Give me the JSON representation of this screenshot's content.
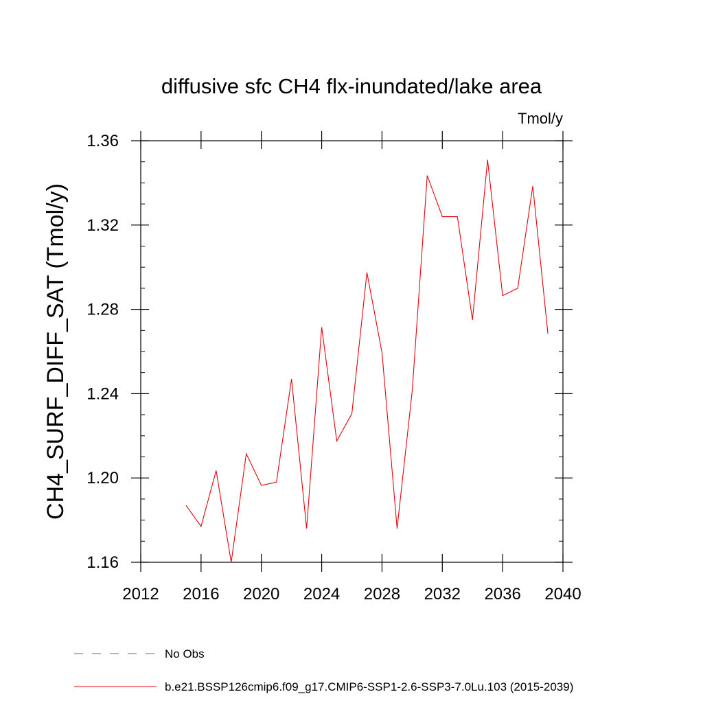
{
  "chart_data": {
    "type": "line",
    "title": "diffusive sfc CH4 flx-inundated/lake area",
    "units": "Tmol/y",
    "ylabel": "CH4_SURF_DIFF_SAT  (Tmol/y)",
    "xlabel": "",
    "xlim": [
      2012,
      2040
    ],
    "ylim": [
      1.16,
      1.36
    ],
    "x_ticks": [
      2012,
      2016,
      2020,
      2024,
      2028,
      2032,
      2036,
      2040
    ],
    "x_tick_labels": [
      "2012",
      "2016",
      "2020",
      "2024",
      "2028",
      "2032",
      "2036",
      "2040"
    ],
    "y_ticks": [
      1.16,
      1.2,
      1.24,
      1.28,
      1.32,
      1.36
    ],
    "y_tick_labels": [
      "1.16",
      "1.20",
      "1.24",
      "1.28",
      "1.32",
      "1.36"
    ],
    "grid": false,
    "legend_position": "bottom-left",
    "series": [
      {
        "name": "b.e21.BSSP126cmip6.f09_g17.CMIP6-SSP1-2.6-SSP3-7.0Lu.103 (2015-2039)",
        "color": "#e8000b",
        "style": "solid",
        "x": [
          2015,
          2016,
          2017,
          2018,
          2019,
          2020,
          2021,
          2022,
          2023,
          2024,
          2025,
          2026,
          2027,
          2028,
          2029,
          2030,
          2031,
          2032,
          2033,
          2034,
          2035,
          2036,
          2037,
          2038,
          2039
        ],
        "values": [
          1.187,
          1.177,
          1.2035,
          1.16,
          1.2115,
          1.1965,
          1.198,
          1.247,
          1.176,
          1.2715,
          1.2175,
          1.2305,
          1.2975,
          1.2595,
          1.176,
          1.241,
          1.3435,
          1.324,
          1.324,
          1.275,
          1.351,
          1.2865,
          1.29,
          1.3385,
          1.2685
        ]
      }
    ],
    "legend": [
      {
        "label": "No Obs",
        "color": "#6a5acd",
        "style": "dashed"
      },
      {
        "label": "b.e21.BSSP126cmip6.f09_g17.CMIP6-SSP1-2.6-SSP3-7.0Lu.103 (2015-2039)",
        "color": "#e8000b",
        "style": "solid"
      }
    ]
  }
}
